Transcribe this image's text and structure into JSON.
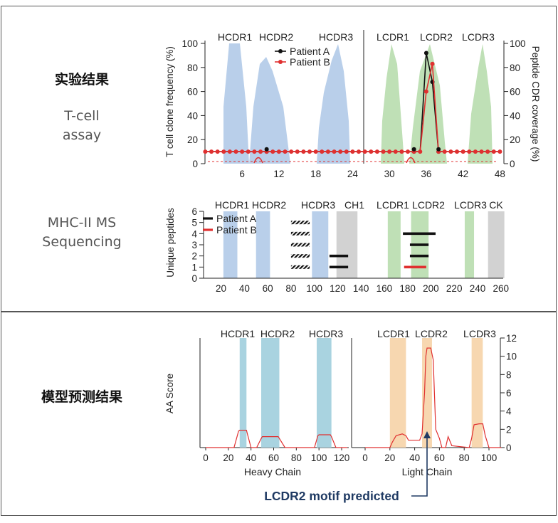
{
  "labels": {
    "experiment_results": "实验结果",
    "tcell_line1": "T-cell",
    "tcell_line2": "assay",
    "ms_line1": "MHC-II MS",
    "ms_line2": "Sequencing",
    "model_results": "模型预测结果",
    "motif_note": "LCDR2 motif predicted"
  },
  "colors": {
    "heavy_band": "#b9cfea",
    "light_band": "#bfe0b6",
    "ch_band": "#d2d2d2",
    "pred_heavy": "#a9d3e0",
    "pred_light": "#f7d7b0",
    "patient_a": "#111111",
    "patient_b": "#e03030",
    "pred_line": "#e03030",
    "note": "#1f3a63"
  },
  "chart_data": [
    {
      "type": "line",
      "name": "tcell",
      "regions": [
        "HCDR1",
        "HCDR2",
        "HCDR3",
        "LCDR1",
        "LCDR2",
        "LCDR3"
      ],
      "ylabel_left": "T cell clone frequency (%)",
      "ylabel_right": "Peptide CDR coverage (%)",
      "y_ticks_left": [
        "0",
        "20",
        "40",
        "60",
        "80",
        "100"
      ],
      "y_ticks_right": [
        "0",
        "20",
        "40",
        "60",
        "80",
        "100"
      ],
      "x_ticks": [
        "6",
        "12",
        "18",
        "24",
        "30",
        "36",
        "42",
        "48"
      ],
      "legend": [
        "Patient A",
        "Patient B"
      ],
      "ylim": [
        0,
        100
      ],
      "series": [
        {
          "name": "Patient A",
          "x": [
            0,
            1,
            2,
            3,
            4,
            5,
            6,
            7,
            8,
            9,
            10,
            11,
            12,
            13,
            14,
            15,
            16,
            17,
            18,
            19,
            20,
            21,
            22,
            23,
            24,
            25,
            26,
            27,
            28,
            29,
            30,
            31,
            32,
            33,
            34,
            35,
            36,
            37,
            38,
            39,
            40,
            41,
            42,
            43,
            44,
            45,
            46,
            47,
            48
          ],
          "values": [
            10,
            10,
            10,
            10,
            10,
            10,
            10,
            10,
            10,
            10,
            10,
            10,
            10,
            10,
            10,
            10,
            10,
            10,
            10,
            10,
            10,
            10,
            10,
            10,
            10,
            10,
            10,
            10,
            10,
            10,
            10,
            10,
            10,
            10,
            10,
            10,
            92,
            68,
            10,
            10,
            10,
            10,
            10,
            10,
            10,
            10,
            10,
            10,
            10
          ]
        },
        {
          "name": "Patient B",
          "x": [
            0,
            1,
            2,
            3,
            4,
            5,
            6,
            7,
            8,
            9,
            10,
            11,
            12,
            13,
            14,
            15,
            16,
            17,
            18,
            19,
            20,
            21,
            22,
            23,
            24,
            25,
            26,
            27,
            28,
            29,
            30,
            31,
            32,
            33,
            34,
            35,
            36,
            37,
            38,
            39,
            40,
            41,
            42,
            43,
            44,
            45,
            46,
            47,
            48
          ],
          "values": [
            10,
            10,
            10,
            10,
            10,
            10,
            10,
            10,
            10,
            10,
            10,
            10,
            10,
            10,
            10,
            10,
            10,
            10,
            10,
            10,
            10,
            10,
            10,
            10,
            10,
            10,
            10,
            10,
            10,
            10,
            10,
            10,
            10,
            10,
            10,
            10,
            60,
            83,
            10,
            10,
            10,
            10,
            10,
            10,
            10,
            10,
            10,
            10,
            10
          ]
        }
      ]
    },
    {
      "type": "bar",
      "name": "ms",
      "regions": [
        "HCDR1",
        "HCDR2",
        "HCDR3",
        "CH1",
        "LCDR1",
        "LCDR2",
        "LCDR3",
        "CK"
      ],
      "ylabel": "Unique peptides",
      "y_ticks": [
        "0",
        "1",
        "2",
        "3",
        "4",
        "5",
        "6"
      ],
      "x_ticks": [
        "20",
        "40",
        "60",
        "80",
        "100",
        "120",
        "140",
        "160",
        "180",
        "200",
        "220",
        "240",
        "260"
      ],
      "legend": [
        "Patient A",
        "Patient B"
      ],
      "ylim": [
        0,
        6
      ],
      "xlim": [
        5,
        262
      ],
      "peptides": [
        {
          "patient": "A",
          "start": 80,
          "end": 96,
          "level": 1,
          "hatched": true
        },
        {
          "patient": "A",
          "start": 80,
          "end": 96,
          "level": 2,
          "hatched": true
        },
        {
          "patient": "A",
          "start": 80,
          "end": 96,
          "level": 3,
          "hatched": true
        },
        {
          "patient": "A",
          "start": 80,
          "end": 96,
          "level": 4,
          "hatched": true
        },
        {
          "patient": "A",
          "start": 80,
          "end": 96,
          "level": 5,
          "hatched": true
        },
        {
          "patient": "A",
          "start": 113,
          "end": 129,
          "level": 1,
          "hatched": false
        },
        {
          "patient": "A",
          "start": 113,
          "end": 129,
          "level": 2,
          "hatched": false
        },
        {
          "patient": "A",
          "start": 182,
          "end": 198,
          "level": 2,
          "hatched": false
        },
        {
          "patient": "A",
          "start": 182,
          "end": 198,
          "level": 3,
          "hatched": false
        },
        {
          "patient": "A",
          "start": 176,
          "end": 204,
          "level": 4,
          "hatched": false
        },
        {
          "patient": "B",
          "start": 177,
          "end": 196,
          "level": 1,
          "hatched": false
        }
      ]
    },
    {
      "type": "line",
      "name": "prediction",
      "regions": [
        "HCDR1",
        "HCDR2",
        "HCDR3",
        "LCDR1",
        "LCDR2",
        "LCDR3"
      ],
      "ylabel": "AA Score",
      "y_ticks": [
        "0",
        "2",
        "4",
        "6",
        "8",
        "10",
        "12"
      ],
      "ylim": [
        0,
        12
      ],
      "heavy": {
        "xlabel": "Heavy Chain",
        "x_ticks": [
          "0",
          "20",
          "40",
          "60",
          "80",
          "100",
          "120"
        ],
        "xlim": [
          -5,
          125
        ],
        "x": [
          0,
          25,
          29,
          30,
          36,
          37,
          40,
          45,
          49,
          50,
          64,
          65,
          70,
          96,
          99,
          100,
          110,
          111,
          115,
          125
        ],
        "values": [
          0,
          0,
          1.8,
          1.9,
          1.9,
          1.4,
          0,
          0,
          1,
          1.2,
          1.2,
          1,
          0,
          0,
          1.3,
          1.4,
          1.4,
          1.2,
          0,
          0
        ]
      },
      "light": {
        "xlabel": "Light Chain",
        "x_ticks": [
          "0",
          "20",
          "40",
          "60",
          "80",
          "100"
        ],
        "xlim": [
          -5,
          110
        ],
        "x": [
          0,
          20,
          22,
          25,
          30,
          33,
          35,
          40,
          44,
          46,
          48,
          49,
          50,
          53,
          55,
          57,
          60,
          62,
          65,
          67,
          70,
          84,
          86,
          88,
          92,
          95,
          97,
          100,
          110
        ],
        "values": [
          0,
          0,
          0.6,
          1.3,
          1.5,
          1.3,
          0.8,
          0.8,
          0.8,
          1.5,
          6,
          10,
          10.9,
          10.9,
          9.6,
          2,
          1,
          0,
          0,
          1.2,
          0.2,
          0,
          1,
          2.5,
          2.6,
          2.6,
          1.3,
          0,
          0
        ]
      }
    }
  ]
}
